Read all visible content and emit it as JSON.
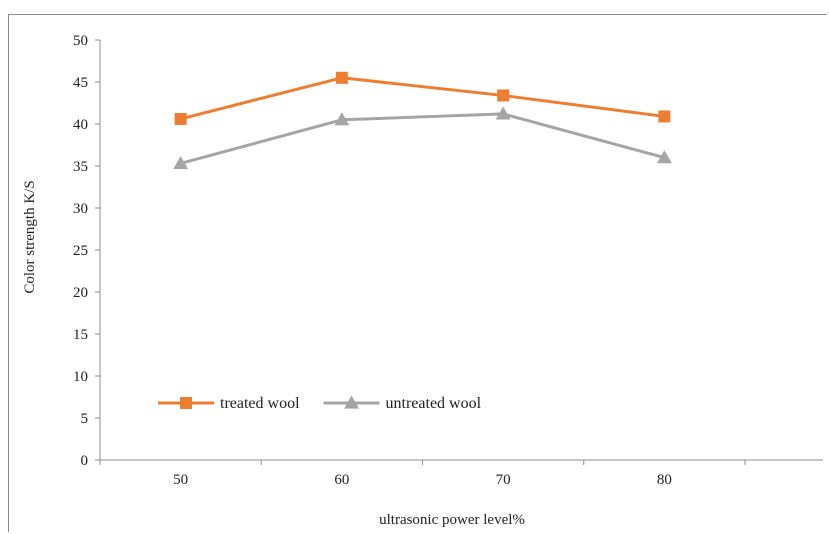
{
  "chart_data": {
    "type": "line",
    "categories": [
      "50",
      "60",
      "70",
      "80"
    ],
    "series": [
      {
        "name": "treated wool",
        "values": [
          40.6,
          45.5,
          43.4,
          40.9
        ],
        "color": "#ed7d31",
        "marker": "square"
      },
      {
        "name": "untreated wool",
        "values": [
          35.3,
          40.5,
          41.2,
          36.0
        ],
        "color": "#a5a5a5",
        "marker": "triangle"
      }
    ],
    "xlabel": "ultrasonic power level%",
    "ylabel": "Color strength K/S",
    "ylim": [
      0,
      50
    ],
    "yticks": [
      "0",
      "5",
      "10",
      "15",
      "20",
      "25",
      "30",
      "35",
      "40",
      "45",
      "50"
    ],
    "grid": false,
    "legend_position": "bottom-left inside"
  }
}
